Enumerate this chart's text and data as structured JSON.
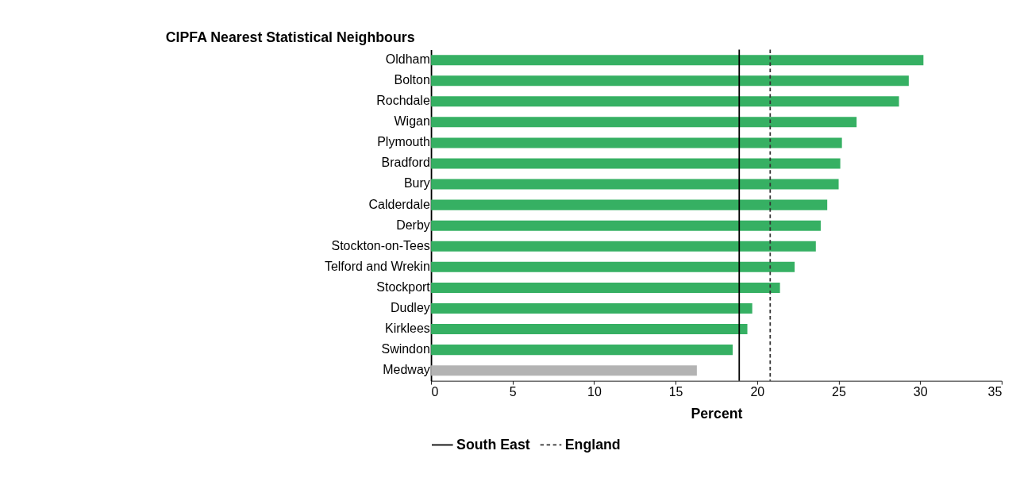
{
  "chart_data": {
    "type": "bar",
    "orientation": "horizontal",
    "title": "CIPFA Nearest Statistical Neighbours",
    "xlabel": "Percent",
    "categories": [
      "Oldham",
      "Bolton",
      "Rochdale",
      "Wigan",
      "Plymouth",
      "Bradford",
      "Bury",
      "Calderdale",
      "Derby",
      "Stockton-on-Tees",
      "Telford and Wrekin",
      "Stockport",
      "Dudley",
      "Kirklees",
      "Swindon",
      "Medway"
    ],
    "values": [
      30.2,
      29.3,
      28.7,
      26.1,
      25.2,
      25.1,
      25.0,
      24.3,
      23.9,
      23.6,
      22.3,
      21.4,
      19.7,
      19.4,
      18.5,
      16.3
    ],
    "colors": [
      "#36b063",
      "#36b063",
      "#36b063",
      "#36b063",
      "#36b063",
      "#36b063",
      "#36b063",
      "#36b063",
      "#36b063",
      "#36b063",
      "#36b063",
      "#36b063",
      "#36b063",
      "#36b063",
      "#36b063",
      "#b3b3b3"
    ],
    "xlim": [
      0,
      35
    ],
    "xticks": [
      0,
      5,
      10,
      15,
      20,
      25,
      30,
      35
    ],
    "grid": false,
    "legend": "bottom",
    "ref_lines": [
      {
        "axis": "x",
        "value": 18.9,
        "label": "South East",
        "color": "#000000",
        "line_style": "solid"
      },
      {
        "axis": "x",
        "value": 20.8,
        "label": "England",
        "color": "#333333",
        "line_style": "dashed"
      }
    ]
  }
}
